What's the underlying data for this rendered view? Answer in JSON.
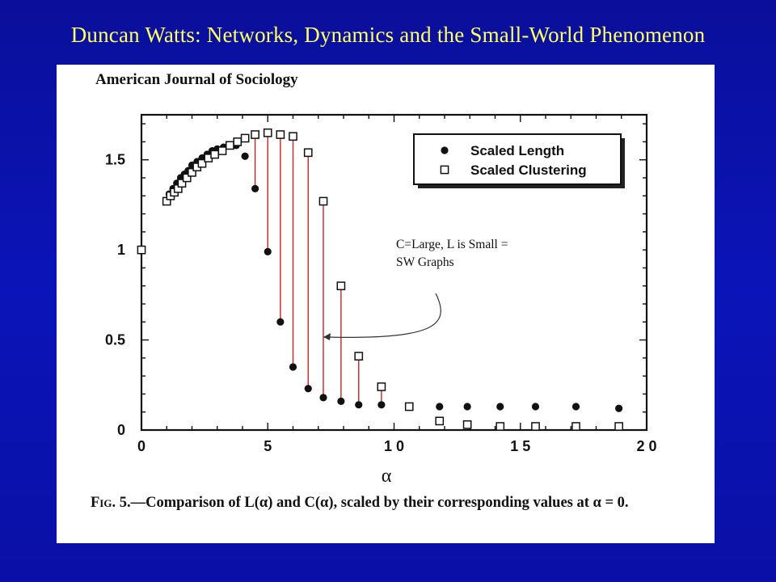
{
  "slide": {
    "title": "Duncan Watts: Networks, Dynamics and the Small-World Phenomenon"
  },
  "paper": {
    "journal": "American Journal of Sociology",
    "caption_prefix": "Fig. 5.",
    "caption_text": "—Comparison of L(α) and C(α), scaled by their corresponding values at α = 0."
  },
  "annotation": {
    "line1": "C=Large, L is Small =",
    "line2": "SW Graphs"
  },
  "chart_data": {
    "type": "scatter",
    "xlabel": "α",
    "ylabel": "",
    "xlim": [
      0,
      20
    ],
    "ylim": [
      0,
      1.75
    ],
    "x_ticks": [
      {
        "value": 0,
        "label": "0"
      },
      {
        "value": 5,
        "label": "5"
      },
      {
        "value": 10,
        "label": "1 0"
      },
      {
        "value": 15,
        "label": "1 5"
      },
      {
        "value": 20,
        "label": "2 0"
      }
    ],
    "y_ticks": [
      {
        "value": 0,
        "label": "0"
      },
      {
        "value": 0.5,
        "label": "0.5"
      },
      {
        "value": 1,
        "label": "1"
      },
      {
        "value": 1.5,
        "label": "1.5"
      }
    ],
    "legend_position": "top-right",
    "series": [
      {
        "name": "Scaled Length",
        "marker": "filled-circle",
        "points": [
          [
            0,
            1.0
          ],
          [
            1.1,
            1.31
          ],
          [
            1.25,
            1.34
          ],
          [
            1.4,
            1.37
          ],
          [
            1.55,
            1.4
          ],
          [
            1.7,
            1.42
          ],
          [
            1.85,
            1.44
          ],
          [
            2.0,
            1.47
          ],
          [
            2.2,
            1.49
          ],
          [
            2.4,
            1.51
          ],
          [
            2.6,
            1.53
          ],
          [
            2.8,
            1.55
          ],
          [
            3.0,
            1.56
          ],
          [
            3.25,
            1.57
          ],
          [
            3.5,
            1.58
          ],
          [
            3.75,
            1.58
          ],
          [
            4.1,
            1.52
          ],
          [
            4.5,
            1.34
          ],
          [
            5.0,
            0.99
          ],
          [
            5.5,
            0.6
          ],
          [
            6.0,
            0.35
          ],
          [
            6.6,
            0.23
          ],
          [
            7.2,
            0.18
          ],
          [
            7.9,
            0.16
          ],
          [
            8.6,
            0.14
          ],
          [
            9.5,
            0.14
          ],
          [
            10.6,
            0.13
          ],
          [
            11.8,
            0.13
          ],
          [
            12.9,
            0.13
          ],
          [
            14.2,
            0.13
          ],
          [
            15.6,
            0.13
          ],
          [
            17.2,
            0.13
          ],
          [
            18.9,
            0.12
          ]
        ]
      },
      {
        "name": "Scaled Clustering",
        "marker": "open-square",
        "points": [
          [
            0,
            1.0
          ],
          [
            1.0,
            1.27
          ],
          [
            1.15,
            1.3
          ],
          [
            1.3,
            1.32
          ],
          [
            1.45,
            1.34
          ],
          [
            1.6,
            1.37
          ],
          [
            1.8,
            1.4
          ],
          [
            2.0,
            1.43
          ],
          [
            2.2,
            1.46
          ],
          [
            2.4,
            1.48
          ],
          [
            2.65,
            1.51
          ],
          [
            2.9,
            1.53
          ],
          [
            3.2,
            1.55
          ],
          [
            3.5,
            1.58
          ],
          [
            3.8,
            1.6
          ],
          [
            4.1,
            1.62
          ],
          [
            4.5,
            1.64
          ],
          [
            5.0,
            1.65
          ],
          [
            5.5,
            1.64
          ],
          [
            6.0,
            1.63
          ],
          [
            6.6,
            1.54
          ],
          [
            7.2,
            1.27
          ],
          [
            7.9,
            0.8
          ],
          [
            8.6,
            0.41
          ],
          [
            9.5,
            0.24
          ],
          [
            10.6,
            0.13
          ],
          [
            11.8,
            0.05
          ],
          [
            12.9,
            0.03
          ],
          [
            14.2,
            0.02
          ],
          [
            15.6,
            0.02
          ],
          [
            17.2,
            0.02
          ],
          [
            18.9,
            0.02
          ]
        ]
      }
    ],
    "highlight_alpha": [
      4.5,
      5.0,
      5.5,
      6.0,
      6.6,
      7.2,
      7.9,
      8.6,
      9.5
    ],
    "colors": {
      "highlight_line": "#cc2222",
      "slide_background": "#0b14b8",
      "slide_title": "#ffff66"
    }
  }
}
